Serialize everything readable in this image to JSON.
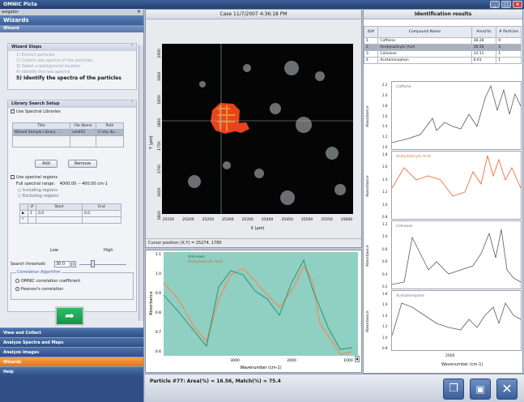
{
  "app": {
    "title": "OMNIC Picta"
  },
  "left": {
    "nav_header": "avigator",
    "section_title": "Wizards",
    "subsection_title": "Wizard",
    "wizard_steps": {
      "header": "Wizard Steps",
      "steps": [
        "1)  Extract particles",
        "2)  Collect raw spectra of the particles",
        "3)  Select a background location",
        "4)  Identify the raw spectra",
        "5)  Identify the spectra of the particles"
      ]
    },
    "library": {
      "header": "Library Search Setup",
      "use_libraries": "Use Spectral Libraries",
      "columns": [
        "Title",
        "File Name",
        "Path"
      ],
      "rows": [
        [
          "Wizard Sample Library ...",
          "sse401",
          "C:\\my do..."
        ]
      ],
      "add_label": "Add",
      "remove_label": "Remove"
    },
    "regions": {
      "use_regions": "Use spectral regions",
      "full_range_label": "Full spectral range:",
      "full_range_value": "4000.00 -- 400.00 cm-1",
      "including": "Including regions",
      "excluding": "Excluding regions",
      "columns": [
        "#",
        "Start",
        "End"
      ],
      "rows": [
        [
          "1",
          "0.0",
          "0.0"
        ]
      ],
      "new_row_marker": "*"
    },
    "slider_low": "Low",
    "slider_high": "High",
    "threshold_label": "Search threshold:",
    "threshold_value": "30.0",
    "correlation": {
      "header": "Correlation Algorithm",
      "options": [
        "OMNIC correlation coefficient",
        "Pearson's correlation"
      ]
    },
    "nav_items": [
      "View and Collect",
      "Analyze Spectra and Maps",
      "Analyze Images",
      "Wizards",
      "Help"
    ]
  },
  "center": {
    "image_title": "Case 11/7/2007 4:36:18 PM",
    "y_axis_label": "Y (µm)",
    "x_axis_label": "X (µm)",
    "x_ticks": [
      "25150",
      "25200",
      "25250",
      "25300",
      "25350",
      "25400",
      "25450",
      "25500",
      "25550",
      "25600"
    ],
    "y_ticks": [
      "1950",
      "1900",
      "1850",
      "1800",
      "1750",
      "1700",
      "1650",
      "1600"
    ],
    "cursor_label": "Cursor position (X,Y) = 25274, 1780",
    "spectrum": {
      "y_label": "Absorbance",
      "x_label": "Wavenumber (cm-1)",
      "y_ticks": [
        "1.1",
        "1.0",
        "0.9",
        "0.8",
        "0.7",
        "0.6"
      ],
      "x_ticks": [
        "3000",
        "2000",
        "1000"
      ],
      "legend": [
        "Unknown",
        "Acetylsalicylic Acid"
      ],
      "fill_color": "#8fd0c2",
      "unknown_color": "#1f8d6a",
      "match_color": "#e4956a"
    }
  },
  "right": {
    "title": "Identification results",
    "columns": [
      "ID#",
      "Compound Name",
      "Area(%)",
      "# Particles"
    ],
    "rows": [
      [
        "1",
        "Caffeine",
        "38.28",
        "9"
      ],
      [
        "2",
        "Acetylsalicylic Acid",
        "16.56",
        "3"
      ],
      [
        "3",
        "Cellulose",
        "14.11",
        "1"
      ],
      [
        "4",
        "Acetaminophen",
        "6.61",
        "1"
      ]
    ],
    "spectra": [
      {
        "name": "Caffeine",
        "ticks": [
          "2.2",
          "2.0",
          "1.8",
          "1.6",
          "1.4",
          "1.2",
          "1.0"
        ],
        "color": "#5a5a5a"
      },
      {
        "name": "Acetylsalicylic Acid",
        "ticks": [
          "1.8",
          "1.6",
          "1.4",
          "1.2",
          "1.0",
          "0.8"
        ],
        "color": "#e8713e"
      },
      {
        "name": "Cellulose",
        "ticks": [
          "1.2",
          "1.0",
          "0.8",
          "0.6",
          "0.4",
          "0.2"
        ],
        "color": "#5a5a5a"
      },
      {
        "name": "Acetaminophen",
        "ticks": [
          "1.8",
          "1.6",
          "1.4",
          "1.2",
          "1.0",
          "0.8"
        ],
        "color": "#5a5a5a"
      }
    ],
    "y_label": "Absorbance",
    "x_label": "Wavenumber (cm-1)",
    "x_tick": "2000"
  },
  "status": {
    "particle_text": "Particle #77: Area(%) = 16.56, Match(%) = 75.4"
  }
}
